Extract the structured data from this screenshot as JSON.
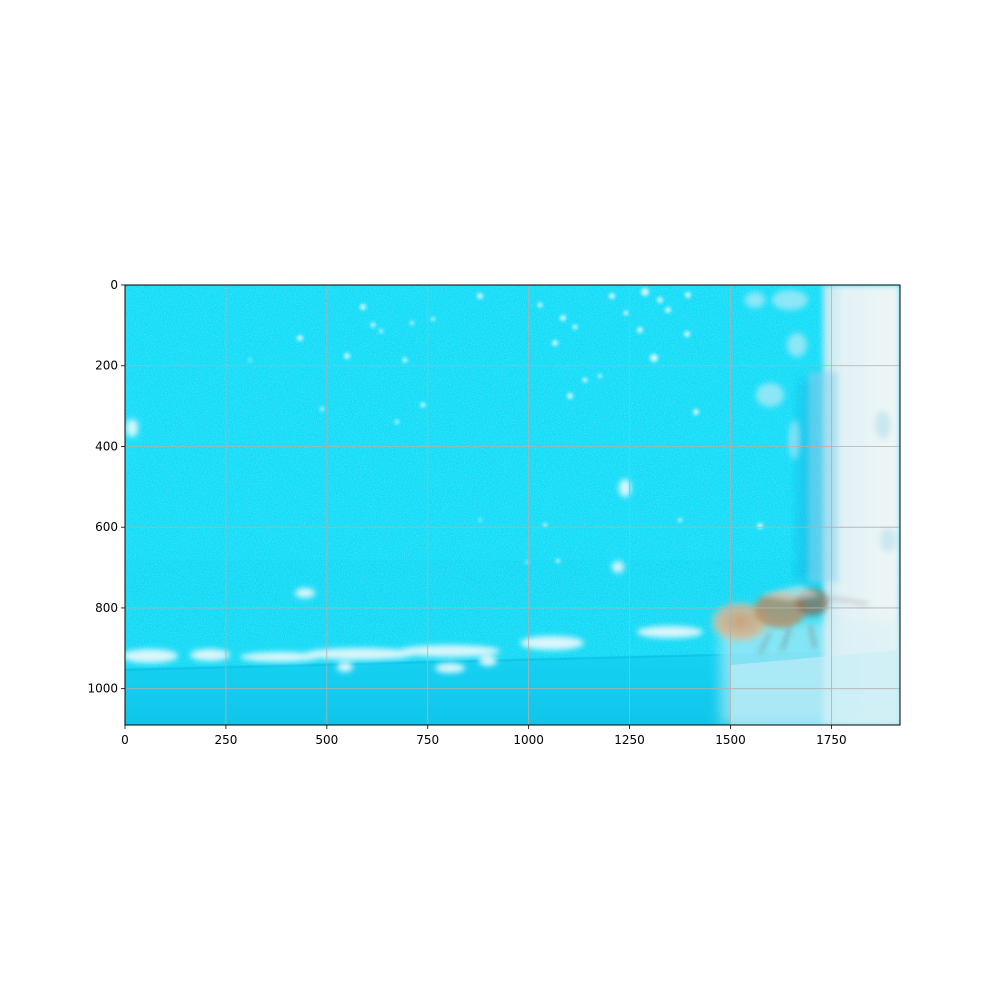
{
  "figure": {
    "background": "#ffffff",
    "image": {
      "extent_x": [
        0,
        1920
      ],
      "extent_y": [
        1090,
        0
      ],
      "dominant_color": "#13dcf8",
      "description_colors": {
        "wall": "#13dcf8",
        "wall_dark": "#0cc7ea",
        "ledge": "#12d0f2",
        "glare_panel": "#e9f4f6",
        "specular": "#dff8fd"
      }
    },
    "axes": {
      "grid": true,
      "grid_color": "#b0b0b0",
      "x_ticks": [
        "0",
        "250",
        "500",
        "750",
        "1000",
        "1250",
        "1500",
        "1750"
      ],
      "x_tick_values": [
        0,
        250,
        500,
        750,
        1000,
        1250,
        1500,
        1750
      ],
      "y_ticks": [
        "0",
        "200",
        "400",
        "600",
        "800",
        "1000"
      ],
      "y_tick_values": [
        0,
        200,
        400,
        600,
        800,
        1000
      ]
    }
  }
}
